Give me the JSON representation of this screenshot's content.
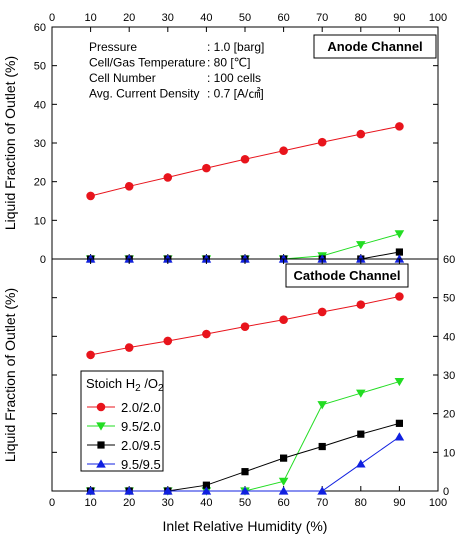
{
  "colors": {
    "series_1": "#e8141c",
    "series_2": "#22dd22",
    "series_3": "#000000",
    "series_4": "#1020e0",
    "frame": "#000000"
  },
  "chart_data": [
    {
      "type": "line",
      "panel": "top",
      "box_label": "Anode Channel",
      "ylabel": "Liquid Fraction of Outlet (%)",
      "xlabel": "",
      "xlim": [
        0,
        100
      ],
      "ylim": [
        0,
        60
      ],
      "x_ticks": [
        0,
        10,
        20,
        30,
        40,
        50,
        60,
        70,
        80,
        90,
        100
      ],
      "y_ticks": [
        0,
        10,
        20,
        30,
        40,
        50,
        60
      ],
      "y_axis_side": "left",
      "x_tick_labels_top": true,
      "info_lines": [
        {
          "label": "Pressure",
          "value": ": 1.0 [barg]"
        },
        {
          "label": "Cell/Gas Temperature",
          "value": ": 80 [℃]"
        },
        {
          "label": "Cell Number",
          "value": ": 100 cells"
        },
        {
          "label": "Avg. Current Density",
          "value": ": 0.7 [A/㎠]"
        }
      ],
      "x": [
        10,
        20,
        30,
        40,
        50,
        60,
        70,
        80,
        90
      ],
      "series": [
        {
          "name": "2.0/2.0",
          "marker": "circle",
          "color": "#e8141c",
          "values": [
            16.3,
            18.8,
            21.1,
            23.5,
            25.8,
            28.0,
            30.2,
            32.3,
            34.3
          ]
        },
        {
          "name": "9.5/2.0",
          "marker": "triangle-down",
          "color": "#22dd22",
          "values": [
            0,
            0,
            0,
            0,
            0,
            0,
            0.8,
            3.7,
            6.5
          ]
        },
        {
          "name": "2.0/9.5",
          "marker": "square",
          "color": "#000000",
          "values": [
            0,
            0,
            0,
            0,
            0,
            0,
            0,
            0,
            1.8
          ]
        },
        {
          "name": "9.5/9.5",
          "marker": "triangle-up",
          "color": "#1020e0",
          "values": [
            0,
            0,
            0,
            0,
            0,
            0,
            0,
            0,
            0
          ]
        }
      ]
    },
    {
      "type": "line",
      "panel": "bottom",
      "box_label": "Cathode Channel",
      "ylabel": "Liquid Fraction of Outlet (%)",
      "xlabel": "Inlet Relative Humidity (%)",
      "xlim": [
        0,
        100
      ],
      "ylim": [
        0,
        60
      ],
      "x_ticks": [
        0,
        10,
        20,
        30,
        40,
        50,
        60,
        70,
        80,
        90,
        100
      ],
      "y_ticks": [
        0,
        10,
        20,
        30,
        40,
        50,
        60
      ],
      "y_axis_side": "right",
      "x_tick_labels_top": false,
      "legend": {
        "title_parts": [
          "Stoich H",
          "2",
          " /O",
          "2"
        ],
        "placement": "center-left"
      },
      "x": [
        10,
        20,
        30,
        40,
        50,
        60,
        70,
        80,
        90
      ],
      "series": [
        {
          "name": "2.0/2.0",
          "marker": "circle",
          "color": "#e8141c",
          "values": [
            35.2,
            37.1,
            38.8,
            40.6,
            42.5,
            44.3,
            46.3,
            48.2,
            50.3
          ]
        },
        {
          "name": "9.5/2.0",
          "marker": "triangle-down",
          "color": "#22dd22",
          "values": [
            0,
            0,
            0,
            0,
            0,
            2.5,
            22.3,
            25.3,
            28.3
          ]
        },
        {
          "name": "2.0/9.5",
          "marker": "square",
          "color": "#000000",
          "values": [
            0,
            0,
            0,
            1.5,
            5.0,
            8.5,
            11.5,
            14.7,
            17.5
          ]
        },
        {
          "name": "9.5/9.5",
          "marker": "triangle-up",
          "color": "#1020e0",
          "values": [
            0,
            0,
            0,
            0,
            0,
            0,
            0,
            7.0,
            14.0
          ]
        }
      ]
    }
  ]
}
